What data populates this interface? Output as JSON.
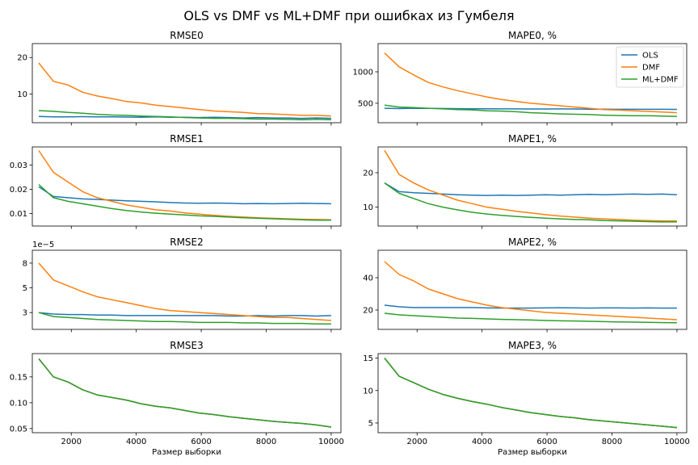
{
  "figure": {
    "title": "OLS vs DMF vs ML+DMF при ошибках из Гумбеля",
    "xlabel": "Размер выборки"
  },
  "colors": {
    "OLS": "#1f77b4",
    "DMF": "#ff7f0e",
    "ML+DMF": "#2ca02c"
  },
  "legend": {
    "placement": "upper-right of MAPE0 panel",
    "entries": [
      "OLS",
      "DMF",
      "ML+DMF"
    ]
  },
  "chart_data": [
    {
      "type": "line",
      "title": "RMSE0",
      "xlim": [
        800,
        10300
      ],
      "ylim": [
        2.2,
        23.8
      ],
      "xticks": [
        2000,
        4000,
        6000,
        8000,
        10000
      ],
      "yticks": [
        10,
        20
      ],
      "x_from": 1000,
      "x_to": 10000,
      "series": [
        {
          "name": "OLS",
          "values": [
            3.9,
            3.8,
            3.8,
            3.85,
            3.8,
            3.8,
            3.75,
            3.7,
            3.8,
            3.7,
            3.7,
            3.6,
            3.7,
            3.6,
            3.5,
            3.6,
            3.5,
            3.5,
            3.4,
            3.5,
            3.4
          ]
        },
        {
          "name": "DMF",
          "values": [
            18.5,
            13.5,
            12.5,
            10.5,
            9.5,
            8.8,
            8.0,
            7.6,
            7.0,
            6.6,
            6.2,
            5.8,
            5.4,
            5.2,
            5.0,
            4.7,
            4.6,
            4.4,
            4.2,
            4.2,
            4.0
          ]
        },
        {
          "name": "ML+DMF",
          "values": [
            5.5,
            5.3,
            5.0,
            4.8,
            4.5,
            4.3,
            4.2,
            4.0,
            3.9,
            3.8,
            3.6,
            3.5,
            3.4,
            3.4,
            3.3,
            3.2,
            3.2,
            3.1,
            3.0,
            3.1,
            3.0
          ]
        }
      ]
    },
    {
      "type": "line",
      "title": "MAPE0, %",
      "xlim": [
        800,
        10300
      ],
      "ylim": [
        190,
        1450
      ],
      "xticks": [
        2000,
        4000,
        6000,
        8000,
        10000
      ],
      "yticks": [
        500,
        1000
      ],
      "x_from": 1000,
      "x_to": 10000,
      "series": [
        {
          "name": "OLS",
          "values": [
            420,
            415,
            420,
            418,
            416,
            414,
            413,
            412,
            410,
            410,
            408,
            408,
            410,
            408,
            405,
            406,
            404,
            404,
            403,
            404,
            402
          ]
        },
        {
          "name": "DMF",
          "values": [
            1300,
            1080,
            950,
            830,
            760,
            700,
            650,
            600,
            560,
            530,
            500,
            480,
            460,
            440,
            420,
            400,
            390,
            380,
            370,
            360,
            350
          ]
        },
        {
          "name": "ML+DMF",
          "values": [
            470,
            440,
            430,
            420,
            410,
            400,
            395,
            380,
            375,
            365,
            350,
            340,
            330,
            325,
            320,
            310,
            305,
            300,
            300,
            295,
            290
          ]
        }
      ]
    },
    {
      "type": "line",
      "title": "RMSE1",
      "xlim": [
        800,
        10300
      ],
      "ylim": [
        0.0048,
        0.0375
      ],
      "xticks": [
        2000,
        4000,
        6000,
        8000,
        10000
      ],
      "yticks": [
        0.01,
        0.02,
        0.03
      ],
      "x_from": 1000,
      "x_to": 10000,
      "series": [
        {
          "name": "OLS",
          "values": [
            0.021,
            0.017,
            0.0165,
            0.016,
            0.0158,
            0.0155,
            0.0152,
            0.015,
            0.0148,
            0.0145,
            0.0143,
            0.0142,
            0.0143,
            0.0142,
            0.014,
            0.0141,
            0.014,
            0.0141,
            0.0142,
            0.0141,
            0.014
          ]
        },
        {
          "name": "DMF",
          "values": [
            0.036,
            0.027,
            0.023,
            0.019,
            0.0165,
            0.015,
            0.0135,
            0.0125,
            0.0115,
            0.011,
            0.0102,
            0.0097,
            0.0092,
            0.0088,
            0.0085,
            0.0082,
            0.008,
            0.0078,
            0.0076,
            0.0075,
            0.0074
          ]
        },
        {
          "name": "ML+DMF",
          "values": [
            0.022,
            0.0165,
            0.015,
            0.014,
            0.013,
            0.012,
            0.0112,
            0.0106,
            0.0101,
            0.0097,
            0.0094,
            0.009,
            0.0088,
            0.0085,
            0.0082,
            0.008,
            0.0078,
            0.0076,
            0.0074,
            0.0072,
            0.0072
          ]
        }
      ]
    },
    {
      "type": "line",
      "title": "MAPE1, %",
      "xlim": [
        800,
        10300
      ],
      "ylim": [
        4.5,
        27.5
      ],
      "xticks": [
        2000,
        4000,
        6000,
        8000,
        10000
      ],
      "yticks": [
        10,
        20
      ],
      "x_from": 1000,
      "x_to": 10000,
      "series": [
        {
          "name": "OLS",
          "values": [
            17,
            14.5,
            14.2,
            14,
            13.8,
            13.6,
            13.5,
            13.4,
            13.5,
            13.4,
            13.5,
            13.6,
            13.5,
            13.6,
            13.7,
            13.6,
            13.7,
            13.8,
            13.7,
            13.8,
            13.6
          ]
        },
        {
          "name": "DMF",
          "values": [
            26.5,
            19.5,
            17,
            15,
            13.5,
            12,
            11,
            10,
            9.4,
            8.8,
            8.3,
            7.8,
            7.4,
            7.1,
            6.8,
            6.6,
            6.4,
            6.2,
            6.1,
            6.0,
            6.0
          ]
        },
        {
          "name": "ML+DMF",
          "values": [
            17,
            14,
            12.5,
            11,
            10,
            9.2,
            8.5,
            8,
            7.6,
            7.3,
            7,
            6.8,
            6.6,
            6.4,
            6.3,
            6.1,
            6.0,
            5.9,
            5.8,
            5.7,
            5.7
          ]
        }
      ]
    },
    {
      "type": "line",
      "title": "RMSE2",
      "xlim": [
        800,
        10300
      ],
      "ylim": [
        0.8,
        8.8
      ],
      "xticks": [
        2000,
        4000,
        6000,
        8000,
        10000
      ],
      "yticks": [
        2.5,
        5.0,
        7.5
      ],
      "y_multiplier": "1e−5",
      "x_from": 1000,
      "x_to": 10000,
      "series": [
        {
          "name": "OLS",
          "values": [
            2.5,
            2.35,
            2.3,
            2.3,
            2.25,
            2.25,
            2.2,
            2.2,
            2.2,
            2.2,
            2.2,
            2.2,
            2.2,
            2.15,
            2.15,
            2.2,
            2.15,
            2.2,
            2.2,
            2.15,
            2.2
          ]
        },
        {
          "name": "DMF",
          "values": [
            7.5,
            5.8,
            5.2,
            4.6,
            4.1,
            3.8,
            3.5,
            3.2,
            2.9,
            2.7,
            2.6,
            2.5,
            2.4,
            2.3,
            2.2,
            2.1,
            2.0,
            2.0,
            1.9,
            1.8,
            1.7
          ]
        },
        {
          "name": "ML+DMF",
          "values": [
            2.5,
            2.1,
            2.0,
            1.9,
            1.8,
            1.75,
            1.7,
            1.65,
            1.6,
            1.6,
            1.55,
            1.5,
            1.5,
            1.5,
            1.45,
            1.45,
            1.4,
            1.4,
            1.4,
            1.35,
            1.35
          ]
        }
      ]
    },
    {
      "type": "line",
      "title": "MAPE2, %",
      "xlim": [
        800,
        10300
      ],
      "ylim": [
        8,
        57
      ],
      "xticks": [
        2000,
        4000,
        6000,
        8000,
        10000
      ],
      "yticks": [
        20,
        40
      ],
      "x_from": 1000,
      "x_to": 10000,
      "series": [
        {
          "name": "OLS",
          "values": [
            23,
            22,
            21.5,
            21.5,
            21.5,
            21.5,
            21.5,
            21.3,
            21.2,
            21.2,
            21.2,
            21.3,
            21.4,
            21.3,
            21.2,
            21.3,
            21.3,
            21.2,
            21.3,
            21.2,
            21.2
          ]
        },
        {
          "name": "DMF",
          "values": [
            50,
            42,
            38,
            33,
            30,
            27,
            25,
            23,
            21.5,
            20.5,
            19.5,
            18.5,
            18,
            17.5,
            17,
            16.5,
            16,
            15.5,
            15,
            14.5,
            14
          ]
        },
        {
          "name": "ML+DMF",
          "values": [
            18,
            17,
            16.5,
            16,
            15.5,
            15,
            14.8,
            14.5,
            14.2,
            14,
            13.8,
            13.5,
            13.3,
            13.2,
            13,
            12.8,
            12.6,
            12.5,
            12.4,
            12.2,
            12.1
          ]
        }
      ]
    },
    {
      "type": "line",
      "title": "RMSE3",
      "xlim": [
        800,
        10300
      ],
      "ylim": [
        0.042,
        0.195
      ],
      "xticks": [
        2000,
        4000,
        6000,
        8000,
        10000
      ],
      "yticks": [
        0.05,
        0.1,
        0.15
      ],
      "x_from": 1000,
      "x_to": 10000,
      "series": [
        {
          "name": "OLS",
          "values": [
            0.185,
            0.15,
            0.14,
            0.125,
            0.115,
            0.11,
            0.105,
            0.098,
            0.093,
            0.09,
            0.085,
            0.08,
            0.077,
            0.073,
            0.07,
            0.067,
            0.064,
            0.062,
            0.06,
            0.057,
            0.053
          ]
        },
        {
          "name": "DMF",
          "values": [
            0.185,
            0.15,
            0.14,
            0.125,
            0.115,
            0.11,
            0.105,
            0.098,
            0.093,
            0.09,
            0.085,
            0.08,
            0.077,
            0.073,
            0.07,
            0.067,
            0.064,
            0.062,
            0.06,
            0.057,
            0.053
          ]
        },
        {
          "name": "ML+DMF",
          "values": [
            0.185,
            0.15,
            0.14,
            0.125,
            0.115,
            0.11,
            0.105,
            0.098,
            0.093,
            0.09,
            0.085,
            0.08,
            0.077,
            0.073,
            0.07,
            0.067,
            0.064,
            0.062,
            0.06,
            0.057,
            0.053
          ]
        }
      ]
    },
    {
      "type": "line",
      "title": "MAPE3, %",
      "xlim": [
        800,
        10300
      ],
      "ylim": [
        3.5,
        15.7
      ],
      "xticks": [
        2000,
        4000,
        6000,
        8000,
        10000
      ],
      "yticks": [
        5,
        10,
        15
      ],
      "x_from": 1000,
      "x_to": 10000,
      "series": [
        {
          "name": "OLS",
          "values": [
            15,
            12.2,
            11.2,
            10.2,
            9.4,
            8.8,
            8.3,
            7.9,
            7.4,
            7.0,
            6.6,
            6.3,
            6.0,
            5.8,
            5.5,
            5.3,
            5.1,
            4.9,
            4.7,
            4.5,
            4.3
          ]
        },
        {
          "name": "DMF",
          "values": [
            15,
            12.2,
            11.2,
            10.2,
            9.4,
            8.8,
            8.3,
            7.9,
            7.4,
            7.0,
            6.6,
            6.3,
            6.0,
            5.8,
            5.5,
            5.3,
            5.1,
            4.9,
            4.7,
            4.5,
            4.3
          ]
        },
        {
          "name": "ML+DMF",
          "values": [
            15,
            12.2,
            11.2,
            10.2,
            9.4,
            8.8,
            8.3,
            7.9,
            7.4,
            7.0,
            6.6,
            6.3,
            6.0,
            5.8,
            5.5,
            5.3,
            5.1,
            4.9,
            4.7,
            4.5,
            4.3
          ]
        }
      ]
    }
  ]
}
